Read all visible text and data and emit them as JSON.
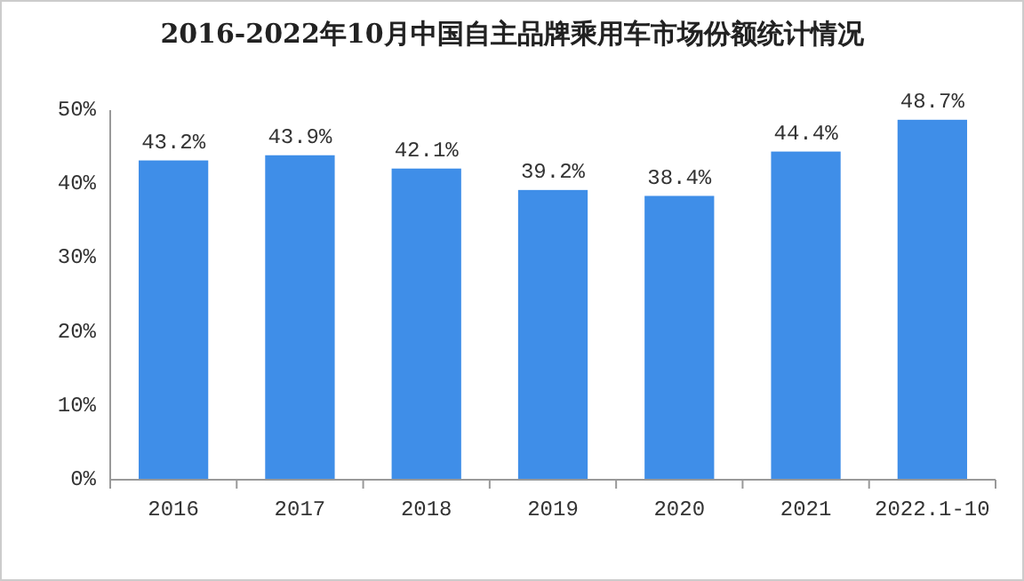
{
  "chart_data": {
    "type": "bar",
    "title": "2016-2022年10月中国自主品牌乘用车市场份额统计情况",
    "categories": [
      "2016",
      "2017",
      "2018",
      "2019",
      "2020",
      "2021",
      "2022.1-10"
    ],
    "values": [
      43.2,
      43.9,
      42.1,
      39.2,
      38.4,
      44.4,
      48.7
    ],
    "color": "#3f8ee8",
    "ylim": [
      0,
      50
    ],
    "yticks": [
      {
        "value": 0,
        "label": "0%"
      },
      {
        "value": 10,
        "label": "10%"
      },
      {
        "value": 20,
        "label": "20%"
      },
      {
        "value": 30,
        "label": "30%"
      },
      {
        "value": 40,
        "label": "40%"
      },
      {
        "value": 50,
        "label": "50%"
      }
    ],
    "value_labels": [
      "43.2%",
      "43.9%",
      "42.1%",
      "39.2%",
      "38.4%",
      "44.4%",
      "48.7%"
    ]
  }
}
